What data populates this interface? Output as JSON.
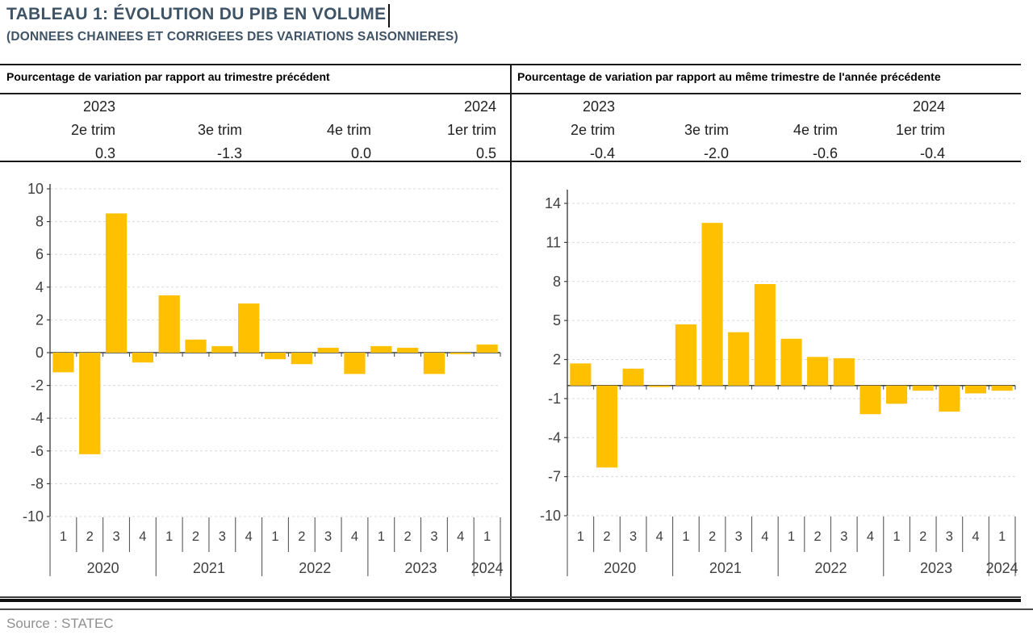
{
  "title": "TABLEAU 1: ÉVOLUTION DU PIB EN VOLUME",
  "subtitle": "(DONNEES CHAINEES ET CORRIGEES DES VARIATIONS SAISONNIERES)",
  "source": "Source : STATEC",
  "colors": {
    "bar": "#FFC000",
    "heading": "#3F5366",
    "axis": "#404040",
    "grid": "#D9D9D9",
    "table_line": "#1A1A1A",
    "separator": "#595959",
    "source_text": "#8F8F8F"
  },
  "panels": [
    {
      "header": "Pourcentage de variation par rapport au trimestre précédent",
      "summary": {
        "years": [
          "2023",
          "2024"
        ],
        "quarters": [
          "2e trim",
          "3e trim",
          "4e trim",
          "1er trim"
        ],
        "values": [
          "0.3",
          "-1.3",
          "0.0",
          "0.5"
        ]
      }
    },
    {
      "header": "Pourcentage de variation par rapport au même trimestre de l'année précédente",
      "summary": {
        "years": [
          "2023",
          "2024"
        ],
        "quarters": [
          "2e trim",
          "3e trim",
          "4e trim",
          "1er trim"
        ],
        "values": [
          "-0.4",
          "-2.0",
          "-0.6",
          "-0.4"
        ]
      }
    }
  ],
  "chart_data": [
    {
      "type": "bar",
      "title": "Pourcentage de variation par rapport au trimestre précédent",
      "x_quarters": [
        "1",
        "2",
        "3",
        "4",
        "1",
        "2",
        "3",
        "4",
        "1",
        "2",
        "3",
        "4",
        "1",
        "2",
        "3",
        "4",
        "1"
      ],
      "x_years": [
        "2020",
        "2021",
        "2022",
        "2023",
        "2024"
      ],
      "values": [
        -1.2,
        -6.2,
        8.5,
        -0.6,
        3.5,
        0.8,
        0.4,
        3.0,
        -0.4,
        -0.7,
        0.3,
        -1.3,
        0.4,
        0.3,
        -1.3,
        0.0,
        0.5
      ],
      "yticks": [
        10,
        8,
        6,
        4,
        2,
        0,
        -2,
        -4,
        -6,
        -8,
        -10
      ],
      "ylim": [
        -10,
        10
      ],
      "ylabel": "",
      "xlabel": "",
      "grid": true,
      "legend": "none",
      "bar_color": "#FFC000"
    },
    {
      "type": "bar",
      "title": "Pourcentage de variation par rapport au même trimestre de l'année précédente",
      "x_quarters": [
        "1",
        "2",
        "3",
        "4",
        "1",
        "2",
        "3",
        "4",
        "1",
        "2",
        "3",
        "4",
        "1",
        "2",
        "3",
        "4",
        "1"
      ],
      "x_years": [
        "2020",
        "2021",
        "2022",
        "2023",
        "2024"
      ],
      "values": [
        1.7,
        -6.3,
        1.3,
        -0.1,
        4.7,
        12.5,
        4.1,
        7.8,
        3.6,
        2.2,
        2.1,
        -2.2,
        -1.4,
        -0.4,
        -2.0,
        -0.6,
        -0.4
      ],
      "yticks": [
        14,
        11,
        8,
        5,
        2,
        -1,
        -4,
        -7,
        -10
      ],
      "ylim": [
        -10,
        14
      ],
      "ylabel": "",
      "xlabel": "",
      "grid": true,
      "legend": "none",
      "bar_color": "#FFC000"
    }
  ]
}
